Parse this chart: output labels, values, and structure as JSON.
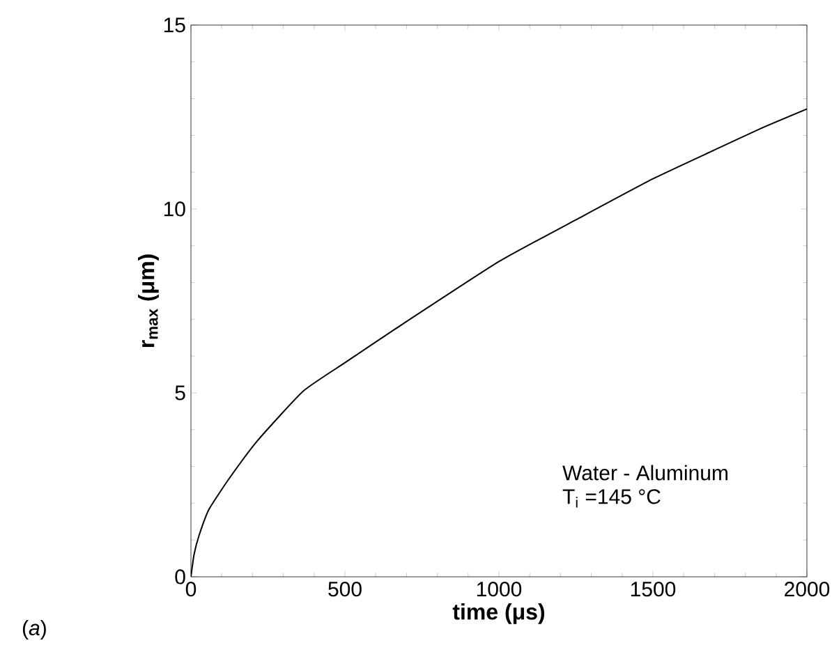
{
  "chart_data": {
    "type": "line",
    "xlabel": "time  (μs)",
    "ylabel": "r$_{max}$ (μm)",
    "x": [
      0,
      10,
      27,
      59,
      124,
      216,
      365,
      500,
      662,
      1000,
      1260,
      1500,
      1704,
      1853,
      2000
    ],
    "series": [
      {
        "color": "#000000",
        "values": [
          0,
          0.6,
          1.14,
          1.84,
          2.67,
          3.7,
          5.05,
          5.82,
          6.73,
          8.57,
          9.75,
          10.82,
          11.62,
          12.2,
          12.72
        ]
      }
    ],
    "xlim": [
      0,
      2000
    ],
    "ylim": [
      0,
      15
    ],
    "xticks": [
      0,
      500,
      1000,
      1500,
      2000
    ],
    "yticks": [
      0,
      5,
      10,
      15
    ],
    "grid": false,
    "marker": "none",
    "line_style": "solid",
    "annotations": [
      {
        "text": "Water - Aluminum"
      },
      {
        "text": "T$_{i}$ =145 °C"
      },
      {
        "text": "(*a*)"
      }
    ]
  }
}
